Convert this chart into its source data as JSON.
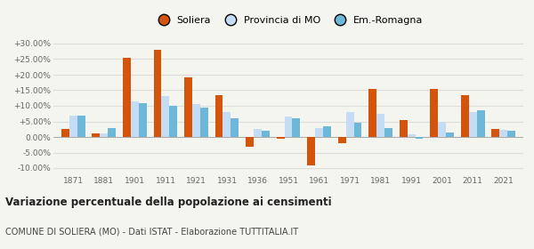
{
  "years": [
    1871,
    1881,
    1901,
    1911,
    1921,
    1931,
    1936,
    1951,
    1961,
    1971,
    1981,
    1991,
    2001,
    2011,
    2021
  ],
  "soliera": [
    2.5,
    1.2,
    25.5,
    28.0,
    19.0,
    13.5,
    -3.0,
    -0.5,
    -9.0,
    -2.0,
    15.5,
    5.5,
    15.5,
    13.5,
    2.5
  ],
  "provincia": [
    7.0,
    1.2,
    11.5,
    13.0,
    10.5,
    8.0,
    2.5,
    6.5,
    3.0,
    8.0,
    7.5,
    1.0,
    5.0,
    8.0,
    2.2
  ],
  "emromagna": [
    7.0,
    3.0,
    11.0,
    10.0,
    9.5,
    6.0,
    2.0,
    6.0,
    3.5,
    4.5,
    3.0,
    -0.5,
    1.5,
    8.5,
    2.0
  ],
  "color_soliera": "#d4540c",
  "color_provincia": "#c5dcf5",
  "color_emromagna": "#6db8d8",
  "title": "Variazione percentuale della popolazione ai censimenti",
  "subtitle": "COMUNE DI SOLIERA (MO) - Dati ISTAT - Elaborazione TUTTITALIA.IT",
  "ylim": [
    -12,
    32
  ],
  "yticks": [
    -10.0,
    -5.0,
    0.0,
    5.0,
    10.0,
    15.0,
    20.0,
    25.0,
    30.0
  ],
  "background_color": "#f5f5f0",
  "grid_color": "#dddddd",
  "legend_labels": [
    "Soliera",
    "Provincia di MO",
    "Em.-Romagna"
  ]
}
